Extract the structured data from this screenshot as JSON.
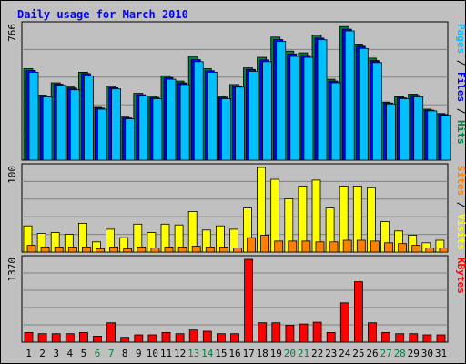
{
  "chart_data": {
    "type": "bar",
    "title": "Daily usage for March 2010",
    "categories": [
      "1",
      "2",
      "3",
      "4",
      "5",
      "6",
      "7",
      "8",
      "9",
      "10",
      "11",
      "12",
      "13",
      "14",
      "15",
      "16",
      "17",
      "18",
      "19",
      "20",
      "21",
      "22",
      "23",
      "24",
      "25",
      "26",
      "27",
      "28",
      "29",
      "30",
      "31"
    ],
    "weekend_days": [
      "6",
      "7",
      "13",
      "14",
      "20",
      "21",
      "27",
      "28"
    ],
    "panels": [
      {
        "id": "top",
        "ymax_label": "766",
        "ymax": 766,
        "axis_labels": [
          {
            "text": "Pages",
            "color": "#00C0FF"
          },
          {
            "text": " / ",
            "color": "#000000"
          },
          {
            "text": "Files",
            "color": "#0000FF"
          },
          {
            "text": " / ",
            "color": "#000000"
          },
          {
            "text": "Hits",
            "color": "#008040"
          }
        ],
        "series": [
          {
            "color": "#008040",
            "values": [
              520,
              370,
              440,
              420,
              500,
              300,
              420,
              245,
              380,
              365,
              480,
              450,
              590,
              520,
              365,
              430,
              525,
              585,
              700,
              620,
              610,
              710,
              460,
              760,
              660,
              580,
              330,
              360,
              375,
              290,
              265
            ]
          },
          {
            "color": "#0000FF",
            "values": [
              510,
              365,
              432,
              410,
              492,
              296,
              412,
              240,
              372,
              357,
              470,
              440,
              572,
              508,
              358,
              422,
              516,
              570,
              686,
              604,
              595,
              694,
              450,
              745,
              648,
              566,
              325,
              354,
              368,
              284,
              260
            ]
          },
          {
            "color": "#00C0FF",
            "values": [
              500,
              360,
              425,
              400,
              480,
              290,
              405,
              235,
              365,
              350,
              460,
              430,
              560,
              500,
              350,
              415,
              505,
              560,
              675,
              590,
              585,
              685,
              440,
              735,
              635,
              555,
              320,
              350,
              360,
              280,
              255
            ]
          }
        ]
      },
      {
        "id": "middle",
        "ymax_label": "100",
        "ymax": 100,
        "axis_labels": [
          {
            "text": "Sites",
            "color": "#FF8000"
          },
          {
            "text": " / ",
            "color": "#000000"
          },
          {
            "text": "Visits",
            "color": "#FFFF00"
          }
        ],
        "series": [
          {
            "color": "#FFFF00",
            "values": [
              31,
              22,
              23,
              21,
              34,
              12,
              27,
              17,
              33,
              23,
              33,
              32,
              48,
              26,
              31,
              27,
              52,
              100,
              86,
              63,
              78,
              85,
              52,
              78,
              78,
              76,
              36,
              25,
              20,
              11,
              14
            ]
          },
          {
            "color": "#FF8000",
            "values": [
              8,
              6,
              6,
              6,
              6,
              4,
              6,
              4,
              6,
              5,
              6,
              6,
              7,
              6,
              6,
              5,
              17,
              20,
              13,
              13,
              13,
              12,
              12,
              14,
              14,
              13,
              11,
              10,
              8,
              5,
              5
            ]
          }
        ]
      },
      {
        "id": "bottom",
        "ymax_label": "1370",
        "ymax": 1370,
        "axis_labels": [
          {
            "text": "KBytes",
            "color": "#FF0000"
          }
        ],
        "series": [
          {
            "color": "#FF0000",
            "values": [
              160,
              140,
              140,
              140,
              160,
              100,
              320,
              80,
              120,
              120,
              160,
              140,
              200,
              180,
              140,
              140,
              1370,
              320,
              320,
              280,
              300,
              330,
              160,
              650,
              1000,
              320,
              160,
              140,
              140,
              120,
              120
            ]
          }
        ]
      }
    ],
    "grid": true,
    "legend": "right-vertical"
  }
}
